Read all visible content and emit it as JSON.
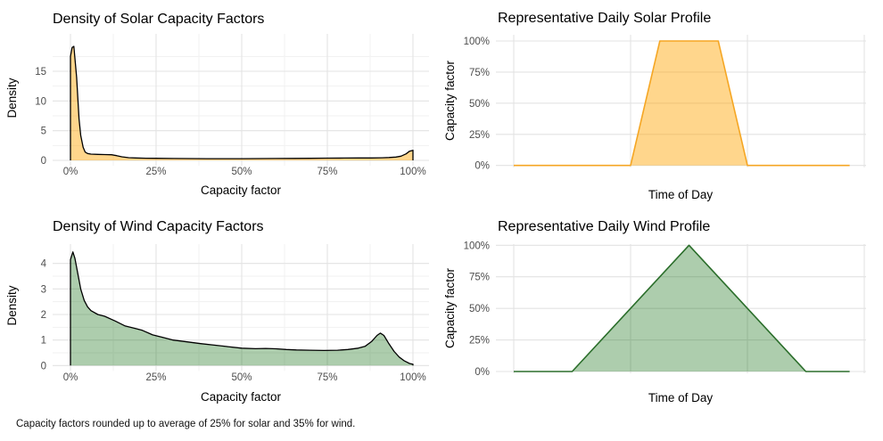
{
  "page": {
    "background": "#FFFFFF",
    "caption": "Capacity factors rounded up to average of 25% for solar and 35% for wind."
  },
  "chart_data": [
    {
      "id": "solar-density",
      "type": "area",
      "title": "Density of Solar Capacity Factors",
      "xlabel": "Capacity factor",
      "ylabel": "Density",
      "xlim": [
        0,
        100
      ],
      "ylim": [
        0,
        19.2
      ],
      "xticks": {
        "values": [
          0,
          25,
          50,
          75,
          100
        ],
        "labels": [
          "0%",
          "25%",
          "50%",
          "75%",
          "100%"
        ]
      },
      "yticks": {
        "values": [
          0,
          5,
          10,
          15
        ],
        "labels": [
          "0",
          "5",
          "10",
          "15"
        ]
      },
      "x_minor": [
        12.5,
        37.5,
        62.5,
        87.5
      ],
      "y_minor": [
        2.5,
        7.5,
        12.5,
        17.5
      ],
      "grid": true,
      "line_color": "#000000",
      "line_width": 1.3,
      "fill_color": "#FFA500",
      "fill_opacity": 0.45,
      "closed": true,
      "points": [
        [
          0,
          17.5
        ],
        [
          0.5,
          19.0
        ],
        [
          1,
          19.2
        ],
        [
          1.8,
          14
        ],
        [
          2.5,
          7
        ],
        [
          3,
          4.2
        ],
        [
          3.7,
          2.2
        ],
        [
          4.3,
          1.4
        ],
        [
          5,
          1.15
        ],
        [
          6,
          1.05
        ],
        [
          8,
          1.0
        ],
        [
          10,
          0.98
        ],
        [
          12,
          0.95
        ],
        [
          13.5,
          0.8
        ],
        [
          15,
          0.6
        ],
        [
          17,
          0.45
        ],
        [
          19,
          0.4
        ],
        [
          22,
          0.36
        ],
        [
          25,
          0.34
        ],
        [
          30,
          0.31
        ],
        [
          35,
          0.3
        ],
        [
          40,
          0.29
        ],
        [
          45,
          0.29
        ],
        [
          50,
          0.29
        ],
        [
          55,
          0.3
        ],
        [
          60,
          0.31
        ],
        [
          65,
          0.33
        ],
        [
          70,
          0.35
        ],
        [
          75,
          0.37
        ],
        [
          80,
          0.39
        ],
        [
          84,
          0.4
        ],
        [
          88,
          0.41
        ],
        [
          91,
          0.44
        ],
        [
          93,
          0.48
        ],
        [
          95,
          0.55
        ],
        [
          96.5,
          0.7
        ],
        [
          98,
          1.1
        ],
        [
          99,
          1.55
        ],
        [
          100,
          1.7
        ]
      ]
    },
    {
      "id": "solar-profile",
      "type": "area",
      "title": "Representative Daily Solar Profile",
      "xlabel": "Time of Day",
      "ylabel": "Capacity factor",
      "xlim": [
        0,
        24
      ],
      "ylim": [
        0,
        100
      ],
      "xticks": {
        "values": [
          0,
          8,
          16,
          24
        ],
        "labels": [
          "",
          "",
          "",
          ""
        ]
      },
      "yticks": {
        "values": [
          0,
          25,
          50,
          75,
          100
        ],
        "labels": [
          "0%",
          "25%",
          "50%",
          "75%",
          "100%"
        ]
      },
      "x_minor": [],
      "y_minor": [],
      "grid": true,
      "line_color": "#F5A623",
      "line_width": 1.6,
      "fill_color": "#FFA500",
      "fill_opacity": 0.45,
      "closed": false,
      "points": [
        [
          0,
          0
        ],
        [
          8,
          0
        ],
        [
          10,
          100
        ],
        [
          14,
          100
        ],
        [
          16,
          0
        ],
        [
          23,
          0
        ]
      ]
    },
    {
      "id": "wind-density",
      "type": "area",
      "title": "Density of Wind Capacity Factors",
      "xlabel": "Capacity factor",
      "ylabel": "Density",
      "xlim": [
        0,
        100
      ],
      "ylim": [
        0,
        4.45
      ],
      "xticks": {
        "values": [
          0,
          25,
          50,
          75,
          100
        ],
        "labels": [
          "0%",
          "25%",
          "50%",
          "75%",
          "100%"
        ]
      },
      "yticks": {
        "values": [
          0,
          1,
          2,
          3,
          4
        ],
        "labels": [
          "0",
          "1",
          "2",
          "3",
          "4"
        ]
      },
      "x_minor": [
        12.5,
        37.5,
        62.5,
        87.5
      ],
      "y_minor": [
        0.5,
        1.5,
        2.5,
        3.5
      ],
      "grid": true,
      "line_color": "#000000",
      "line_width": 1.3,
      "fill_color": "#006400",
      "fill_opacity": 0.32,
      "closed": true,
      "points": [
        [
          0,
          4.15
        ],
        [
          0.7,
          4.45
        ],
        [
          1.3,
          4.2
        ],
        [
          2,
          3.7
        ],
        [
          3,
          3.0
        ],
        [
          4,
          2.55
        ],
        [
          5,
          2.3
        ],
        [
          6,
          2.15
        ],
        [
          8,
          2.0
        ],
        [
          10,
          1.93
        ],
        [
          13,
          1.75
        ],
        [
          16,
          1.55
        ],
        [
          19,
          1.45
        ],
        [
          21,
          1.38
        ],
        [
          24,
          1.2
        ],
        [
          27,
          1.1
        ],
        [
          30,
          1.0
        ],
        [
          34,
          0.93
        ],
        [
          38,
          0.86
        ],
        [
          42,
          0.8
        ],
        [
          46,
          0.74
        ],
        [
          50,
          0.68
        ],
        [
          54,
          0.66
        ],
        [
          57,
          0.67
        ],
        [
          60,
          0.655
        ],
        [
          63,
          0.63
        ],
        [
          66,
          0.61
        ],
        [
          70,
          0.6
        ],
        [
          74,
          0.59
        ],
        [
          78,
          0.6
        ],
        [
          81,
          0.63
        ],
        [
          84,
          0.68
        ],
        [
          86,
          0.75
        ],
        [
          88,
          0.95
        ],
        [
          89.5,
          1.18
        ],
        [
          90.5,
          1.27
        ],
        [
          91.5,
          1.18
        ],
        [
          93,
          0.85
        ],
        [
          94.5,
          0.55
        ],
        [
          96,
          0.33
        ],
        [
          97.5,
          0.18
        ],
        [
          99,
          0.08
        ],
        [
          100,
          0.05
        ]
      ]
    },
    {
      "id": "wind-profile",
      "type": "area",
      "title": "Representative Daily Wind Profile",
      "xlabel": "Time of Day",
      "ylabel": "Capacity factor",
      "xlim": [
        0,
        24
      ],
      "ylim": [
        0,
        100
      ],
      "xticks": {
        "values": [
          0,
          8,
          16,
          24
        ],
        "labels": [
          "",
          "",
          "",
          ""
        ]
      },
      "yticks": {
        "values": [
          0,
          25,
          50,
          75,
          100
        ],
        "labels": [
          "0%",
          "25%",
          "50%",
          "75%",
          "100%"
        ]
      },
      "x_minor": [],
      "y_minor": [],
      "grid": true,
      "line_color": "#2B6E2B",
      "line_width": 1.6,
      "fill_color": "#006400",
      "fill_opacity": 0.32,
      "closed": false,
      "points": [
        [
          0,
          0
        ],
        [
          4,
          0
        ],
        [
          12,
          100
        ],
        [
          20,
          0
        ],
        [
          23,
          0
        ]
      ]
    }
  ],
  "theme": {
    "grid_major_color": "#E3E3E3",
    "grid_minor_color": "#F1F1F1",
    "tick_label_color": "#4D4D4D",
    "title_color": "#000000"
  }
}
